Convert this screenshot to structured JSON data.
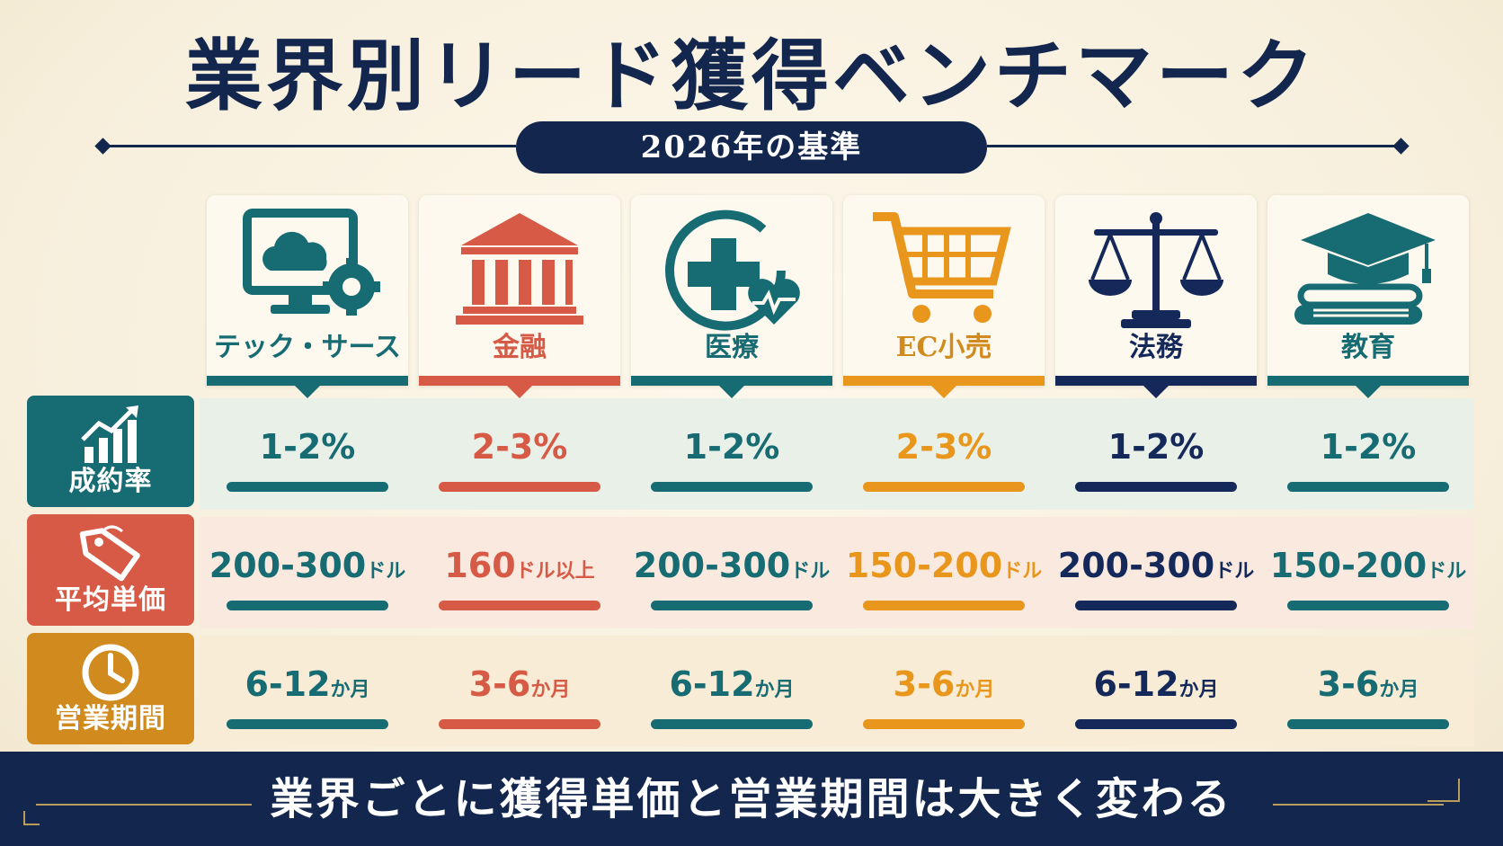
{
  "title": "業界別リード獲得ベンチマーク",
  "subtitle": "2026年の基準",
  "colors": {
    "teal": "#176b73",
    "red": "#d65a45",
    "orange": "#e8961c",
    "navy": "#15285a",
    "label_orange": "#d18a1e"
  },
  "industries": [
    {
      "label": "テック・サース",
      "icon": "monitor-cloud-gear-icon",
      "color": "#176b73"
    },
    {
      "label": "金融",
      "icon": "bank-icon",
      "color": "#d65a45"
    },
    {
      "label": "医療",
      "icon": "medical-cross-heart-icon",
      "color": "#176b73"
    },
    {
      "label": "EC小売",
      "icon": "shopping-cart-icon",
      "color": "#e8961c"
    },
    {
      "label": "法務",
      "icon": "scales-icon",
      "color": "#15285a"
    },
    {
      "label": "教育",
      "icon": "graduation-cap-books-icon",
      "color": "#176b73"
    }
  ],
  "rows": [
    {
      "label": "成約率",
      "icon": "bar-chart-arrow-icon",
      "values": [
        {
          "num": "1-2%",
          "unit": ""
        },
        {
          "num": "2-3%",
          "unit": ""
        },
        {
          "num": "1-2%",
          "unit": ""
        },
        {
          "num": "2-3%",
          "unit": ""
        },
        {
          "num": "1-2%",
          "unit": ""
        },
        {
          "num": "1-2%",
          "unit": ""
        }
      ]
    },
    {
      "label": "平均単価",
      "icon": "price-tag-icon",
      "values": [
        {
          "num": "200-300",
          "unit": "ドル"
        },
        {
          "num": "160",
          "unit": "ドル以上"
        },
        {
          "num": "200-300",
          "unit": "ドル"
        },
        {
          "num": "150-200",
          "unit": "ドル"
        },
        {
          "num": "200-300",
          "unit": "ドル"
        },
        {
          "num": "150-200",
          "unit": "ドル"
        }
      ]
    },
    {
      "label": "営業期間",
      "icon": "clock-icon",
      "values": [
        {
          "num": "6-12",
          "unit": "か月"
        },
        {
          "num": "3-6",
          "unit": "か月"
        },
        {
          "num": "6-12",
          "unit": "か月"
        },
        {
          "num": "3-6",
          "unit": "か月"
        },
        {
          "num": "6-12",
          "unit": "か月"
        },
        {
          "num": "3-6",
          "unit": "か月"
        }
      ]
    }
  ],
  "footer": "業界ごとに獲得単価と営業期間は大きく変わる"
}
